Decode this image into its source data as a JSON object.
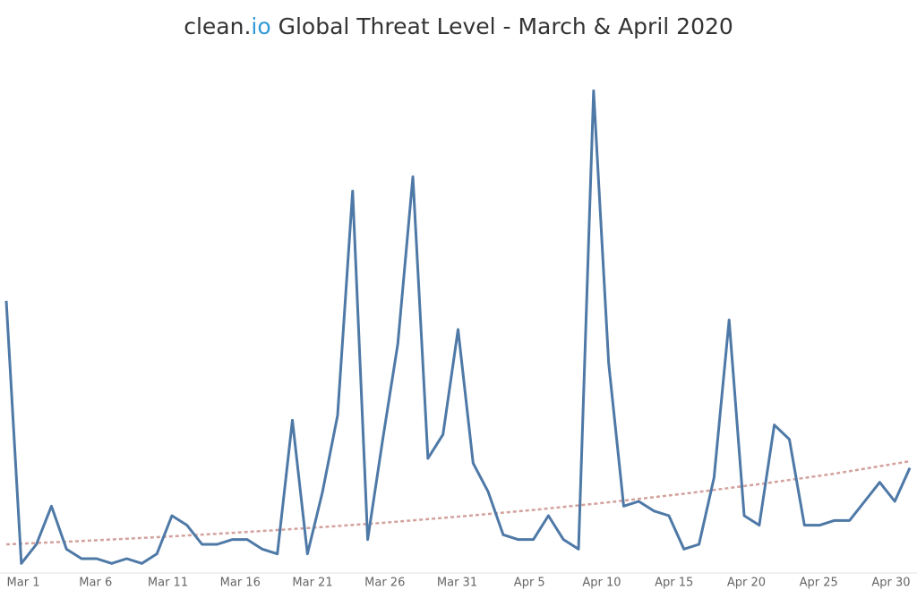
{
  "chart_data": {
    "type": "line",
    "title": {
      "brand": "clean.",
      "brand_accent": "io",
      "text": " Global Threat Level - March & April 2020"
    },
    "categories": [
      "Mar 1",
      null,
      null,
      null,
      null,
      "Mar 6",
      null,
      null,
      null,
      null,
      "Mar 11",
      null,
      null,
      null,
      null,
      "Mar 16",
      null,
      null,
      null,
      null,
      "Mar 21",
      null,
      null,
      null,
      null,
      "Mar 26",
      null,
      null,
      null,
      null,
      "Mar 31",
      null,
      null,
      null,
      null,
      "Apr 5",
      null,
      null,
      null,
      null,
      "Apr 10",
      null,
      null,
      null,
      null,
      "Apr 15",
      null,
      null,
      null,
      null,
      "Apr 20",
      null,
      null,
      null,
      null,
      "Apr 25",
      null,
      null,
      null,
      null,
      "Apr 30"
    ],
    "series": [
      {
        "color": "#4e79a7",
        "values": [
          57,
          2,
          6,
          14,
          5,
          3,
          3,
          2,
          3,
          2,
          4,
          12,
          10,
          6,
          6,
          7,
          7,
          5,
          4,
          32,
          4,
          17,
          33,
          80,
          7,
          28,
          48,
          83,
          24,
          29,
          51,
          23,
          17,
          8,
          7,
          7,
          12,
          7,
          5,
          101,
          44,
          14,
          15,
          13,
          12,
          5,
          6,
          20,
          53,
          12,
          10,
          31,
          28,
          10,
          10,
          11,
          11,
          15,
          19,
          15,
          22
        ]
      }
    ],
    "trend": {
      "color": "#d3a29e",
      "values": [
        6.0,
        6.7,
        7.5,
        8.4,
        9.4,
        10.5,
        11.8,
        13.2,
        14.8,
        16.6,
        18.6,
        20.8,
        23.4
      ]
    },
    "ylim": [
      0,
      105
    ]
  }
}
